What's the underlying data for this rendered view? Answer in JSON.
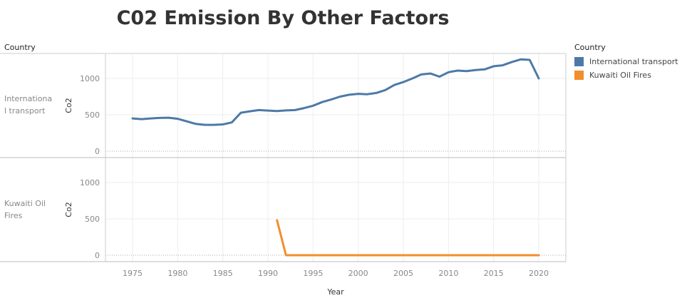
{
  "title": "C02 Emission By Other Factors",
  "row_header": "Country",
  "legend": {
    "title": "Country",
    "items": [
      {
        "label": "International transport",
        "color": "#4e79a7"
      },
      {
        "label": "Kuwaiti Oil Fires",
        "color": "#f28e2b"
      }
    ]
  },
  "chart_data": {
    "type": "line",
    "xlabel": "Year",
    "ylabel": "Co2",
    "xlim": [
      1972,
      2023
    ],
    "ylim": [
      -60,
      1350
    ],
    "x_ticks": [
      1975,
      1980,
      1985,
      1990,
      1995,
      2000,
      2005,
      2010,
      2015,
      2020
    ],
    "y_ticks": [
      0,
      500,
      1000
    ],
    "grid": true,
    "legend_position": "right",
    "panels": [
      {
        "row_label": "International transport",
        "row_label_lines": [
          "Internationa",
          "l transport"
        ],
        "series": {
          "name": "International transport",
          "color": "#4e79a7",
          "x": [
            1975,
            1976,
            1977,
            1978,
            1979,
            1980,
            1981,
            1982,
            1983,
            1984,
            1985,
            1986,
            1987,
            1988,
            1989,
            1990,
            1991,
            1992,
            1993,
            1994,
            1995,
            1996,
            1997,
            1998,
            1999,
            2000,
            2001,
            2002,
            2003,
            2004,
            2005,
            2006,
            2007,
            2008,
            2009,
            2010,
            2011,
            2012,
            2013,
            2014,
            2015,
            2016,
            2017,
            2018,
            2019,
            2020
          ],
          "y": [
            450,
            440,
            450,
            457,
            460,
            445,
            410,
            375,
            362,
            362,
            368,
            395,
            528,
            548,
            565,
            558,
            552,
            560,
            565,
            592,
            625,
            675,
            710,
            750,
            775,
            788,
            782,
            800,
            840,
            910,
            950,
            1000,
            1055,
            1068,
            1025,
            1085,
            1108,
            1100,
            1115,
            1125,
            1168,
            1180,
            1225,
            1262,
            1255,
            1000
          ]
        }
      },
      {
        "row_label": "Kuwaiti Oil Fires",
        "row_label_lines": [
          "Kuwaiti Oil",
          "Fires"
        ],
        "series": {
          "name": "Kuwaiti Oil Fires",
          "color": "#f28e2b",
          "x": [
            1991,
            1992,
            1993,
            1994,
            1995,
            1996,
            1997,
            1998,
            1999,
            2000,
            2001,
            2002,
            2003,
            2004,
            2005,
            2006,
            2007,
            2008,
            2009,
            2010,
            2011,
            2012,
            2013,
            2014,
            2015,
            2016,
            2017,
            2018,
            2019,
            2020
          ],
          "y": [
            480,
            0,
            0,
            0,
            0,
            0,
            0,
            0,
            0,
            0,
            0,
            0,
            0,
            0,
            0,
            0,
            0,
            0,
            0,
            0,
            0,
            0,
            0,
            0,
            0,
            0,
            0,
            0,
            0,
            0
          ]
        }
      }
    ]
  }
}
